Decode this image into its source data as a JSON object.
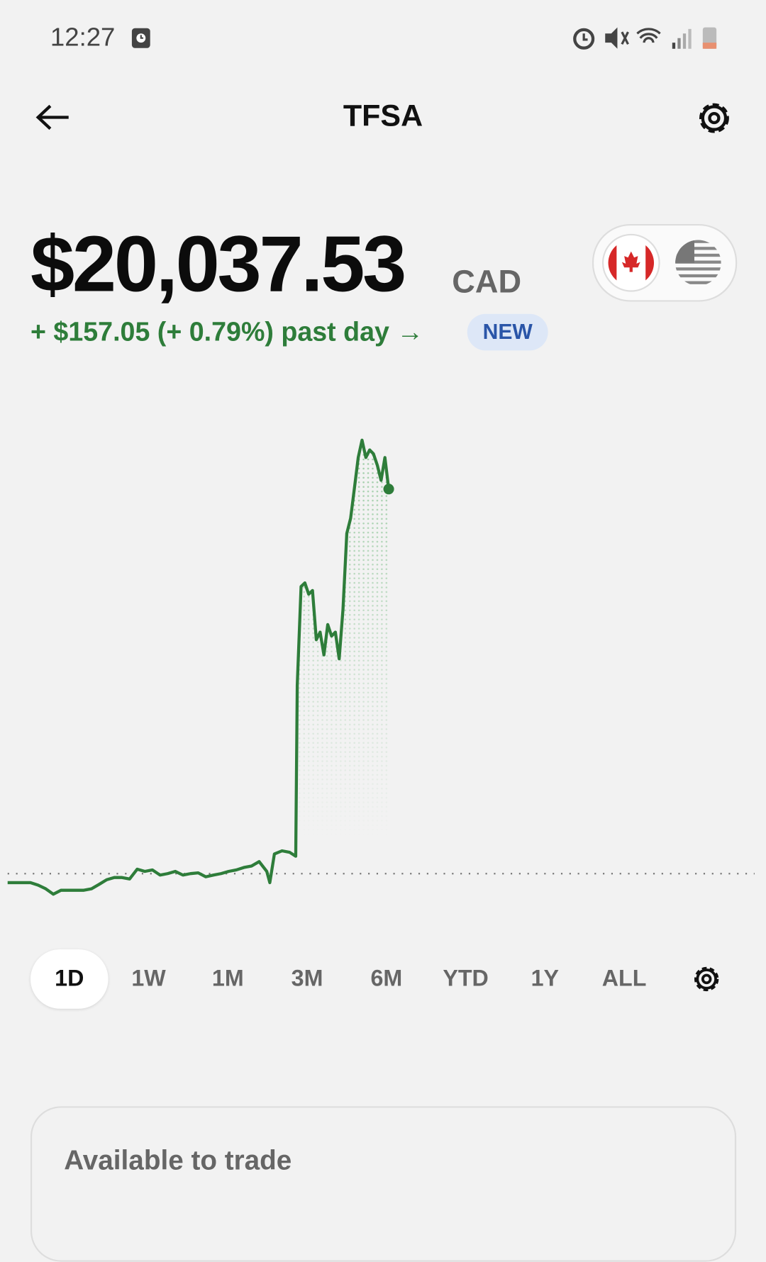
{
  "status_bar": {
    "time": "12:27"
  },
  "header": {
    "title": "TFSA"
  },
  "balance": {
    "amount": "$20,037.53",
    "currency": "CAD",
    "change": "+ $157.05 (+ 0.79%) past day →",
    "badge": "NEW"
  },
  "chart_data": {
    "type": "line",
    "color": "#2e7d3a",
    "baseline": 19880.48,
    "x": [
      0,
      10,
      20,
      30,
      40,
      50,
      60,
      70,
      80,
      90,
      100,
      110,
      120,
      130,
      140,
      150,
      160,
      170,
      180,
      190,
      200,
      210,
      220,
      230,
      240,
      250,
      260,
      270,
      280,
      290,
      300,
      310,
      320,
      330,
      340,
      344,
      350,
      360,
      370,
      378,
      380,
      385,
      390,
      395,
      400,
      405,
      410,
      415,
      420,
      425,
      430,
      435,
      440,
      445,
      450,
      455,
      460,
      465,
      470,
      475,
      480,
      485,
      490,
      495,
      500
    ],
    "values": [
      19876.8,
      19876.8,
      19876.8,
      19876.8,
      19875.8,
      19874.3,
      19872.1,
      19873.7,
      19873.7,
      19873.7,
      19873.7,
      19874.3,
      19876.1,
      19878.0,
      19878.9,
      19878.9,
      19878.3,
      19882.3,
      19881.4,
      19882.0,
      19879.9,
      19880.5,
      19881.4,
      19879.9,
      19880.5,
      19880.8,
      19879.2,
      19879.9,
      19880.5,
      19881.4,
      19882.0,
      19883.0,
      19883.6,
      19885.4,
      19881.4,
      19876.8,
      19888.5,
      19889.8,
      19889.2,
      19887.6,
      19957.4,
      19997.7,
      19999.2,
      19994.6,
      19996.1,
      19976.0,
      19979.1,
      19969.8,
      19982.2,
      19977.5,
      19979.1,
      19968.2,
      19988.4,
      20019.4,
      20025.6,
      20037.9,
      20050.4,
      20057.5,
      20050.4,
      20053.5,
      20051.9,
      20047.3,
      20041.1,
      20050.4,
      20037.53
    ],
    "xlim": [
      0,
      980
    ],
    "ylim": [
      19867,
      20063
    ]
  },
  "ranges": [
    "1D",
    "1W",
    "1M",
    "3M",
    "6M",
    "YTD",
    "1Y",
    "ALL"
  ],
  "card": {
    "title": "Available to trade"
  }
}
